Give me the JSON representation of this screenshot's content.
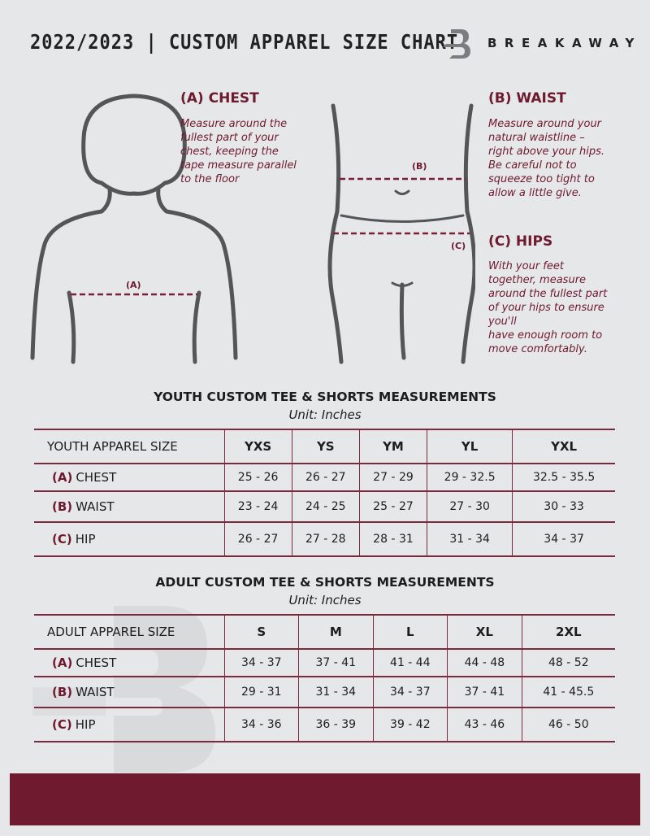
{
  "header": {
    "title": "2022/2023  |  CUSTOM APPAREL SIZE CHART",
    "brand": "BREAKAWAY"
  },
  "colors": {
    "accent": "#6e1a2e",
    "background": "#e6e7e9"
  },
  "guide": {
    "chest": {
      "title": "(A) CHEST",
      "marker": "(A)",
      "text": [
        "Measure around the",
        "fullest part of your",
        "chest, keeping the",
        "tape measure parallel",
        "to the floor"
      ]
    },
    "waist": {
      "title": "(B) WAIST",
      "marker": "(B)",
      "text": [
        "Measure around your",
        "natural waistline –",
        "right above your hips.",
        "Be careful not to",
        "squeeze too tight to",
        "allow a little give."
      ]
    },
    "hips": {
      "title": "(C) HIPS",
      "marker": "(C)",
      "text": [
        "With your feet",
        "together, measure",
        "around the fullest part",
        "of your hips to ensure",
        "you'll",
        "have enough room to",
        "move comfortably."
      ]
    }
  },
  "youth": {
    "title": "YOUTH CUSTOM TEE & SHORTS MEASUREMENTS",
    "unit": "Unit: Inches",
    "header_label": "YOUTH APPAREL SIZE",
    "sizes": [
      "YXS",
      "YS",
      "YM",
      "YL",
      "YXL"
    ],
    "rows": [
      {
        "code": "(A)",
        "label": "CHEST",
        "values": [
          "25 - 26",
          "26 - 27",
          "27 - 29",
          "29 - 32.5",
          "32.5 - 35.5"
        ]
      },
      {
        "code": "(B)",
        "label": "WAIST",
        "values": [
          "23 - 24",
          "24 - 25",
          "25 - 27",
          "27 - 30",
          "30 - 33"
        ]
      },
      {
        "code": "(C)",
        "label": "HIP",
        "values": [
          "26 - 27",
          "27 - 28",
          "28 - 31",
          "31 - 34",
          "34 - 37"
        ]
      }
    ]
  },
  "adult": {
    "title": "ADULT CUSTOM TEE & SHORTS MEASUREMENTS",
    "unit": "Unit: Inches",
    "header_label": "ADULT APPAREL SIZE",
    "sizes": [
      "S",
      "M",
      "L",
      "XL",
      "2XL"
    ],
    "rows": [
      {
        "code": "(A)",
        "label": "CHEST",
        "values": [
          "34 - 37",
          "37 - 41",
          "41 - 44",
          "44 - 48",
          "48 - 52"
        ]
      },
      {
        "code": "(B)",
        "label": "WAIST",
        "values": [
          "29 - 31",
          "31 - 34",
          "34 - 37",
          "37 - 41",
          "41 - 45.5"
        ]
      },
      {
        "code": "(C)",
        "label": "HIP",
        "values": [
          "34 - 36",
          "36 - 39",
          "39 - 42",
          "43 - 46",
          "46 - 50"
        ]
      }
    ]
  }
}
